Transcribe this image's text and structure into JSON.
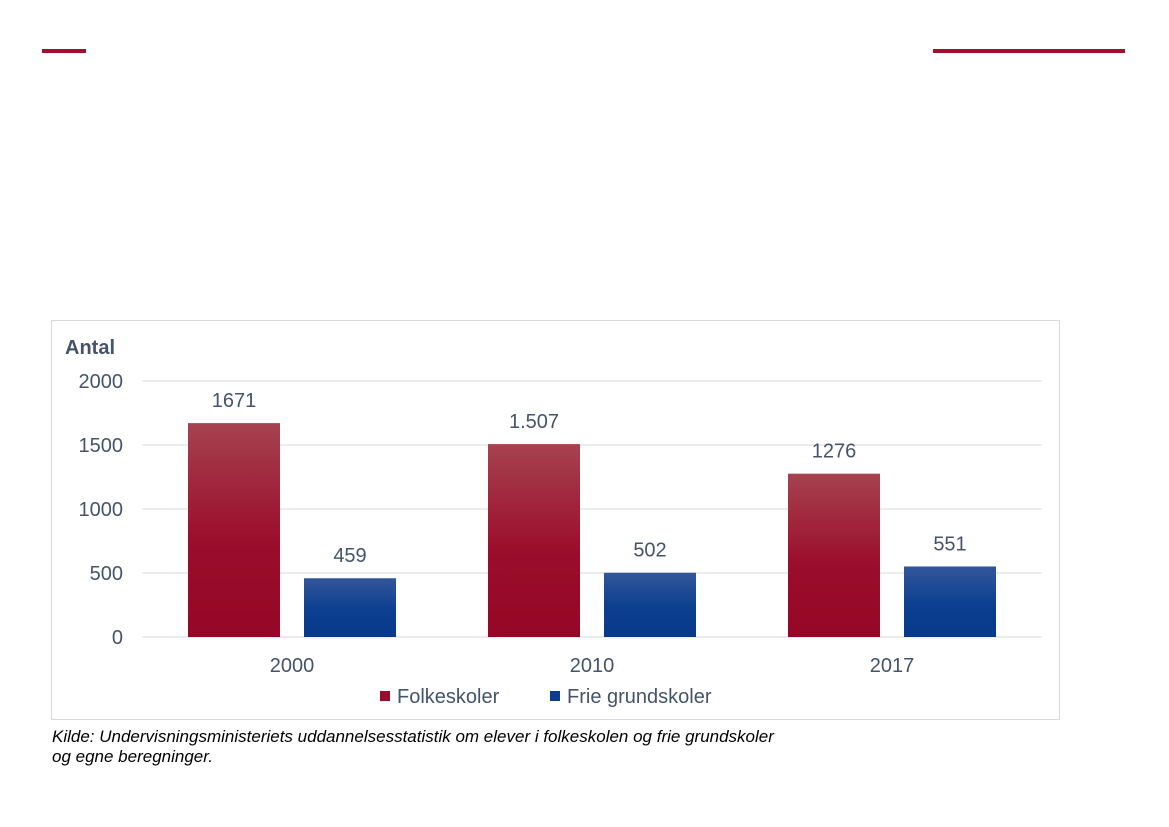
{
  "page": {
    "accent_color": "#a3102f",
    "source_lines": [
      "Kilde: Undervisningsministeriets uddannelsesstatistik om elever i folkeskolen og frie grundskoler",
      "og egne beregninger."
    ]
  },
  "chart_data": {
    "type": "bar",
    "title": "",
    "xlabel": "",
    "ylabel": "Antal",
    "ylim": [
      0,
      2000
    ],
    "yticks": [
      0,
      500,
      1000,
      1500,
      2000
    ],
    "ytick_labels": [
      "0",
      "500",
      "1000",
      "1500",
      "2000"
    ],
    "categories": [
      "2000",
      "2010",
      "2017"
    ],
    "grid": true,
    "legend_position": "bottom",
    "series": [
      {
        "name": "Folkeskoler",
        "color": "#9b0d2c",
        "values": [
          1671,
          1507,
          1276
        ],
        "labels": [
          "1671",
          "1.507",
          "1276"
        ]
      },
      {
        "name": "Frie grundskoler",
        "color": "#0a3d8f",
        "values": [
          459,
          502,
          551
        ],
        "labels": [
          "459",
          "502",
          "551"
        ]
      }
    ]
  }
}
